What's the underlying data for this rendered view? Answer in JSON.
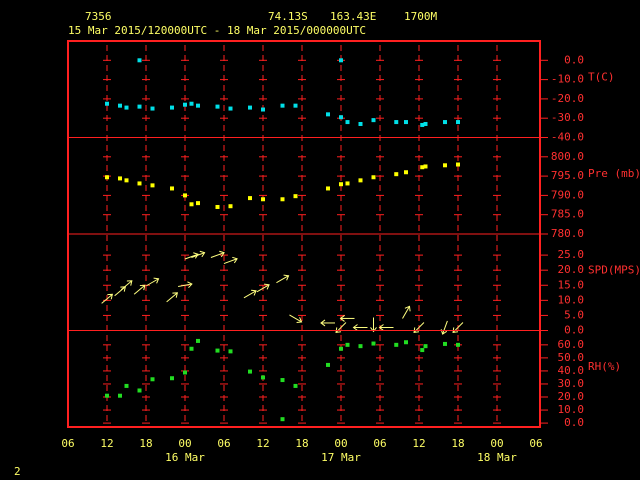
{
  "header": {
    "station": "7356",
    "latitude": "74.13S",
    "longitude": "163.43E",
    "elevation": "1700M",
    "period": "15 Mar 2015/120000UTC - 18 Mar 2015/000000UTC"
  },
  "footer": {
    "page": "2"
  },
  "chart_data": [
    {
      "type": "scatter",
      "axis_label": "T(C)",
      "color": "#00e0e8",
      "x": [
        6,
        8,
        9,
        11,
        13,
        16,
        18,
        19,
        20,
        23,
        25,
        28,
        30,
        33,
        35,
        40,
        42,
        43,
        45,
        47,
        50.5,
        52,
        54.5,
        55,
        58,
        60,
        11,
        42
      ],
      "values": [
        -22.5,
        -23.5,
        -24.5,
        -24,
        -25,
        -24.5,
        -23,
        -22.5,
        -23.5,
        -24,
        -25,
        -24.5,
        -25.5,
        -23.5,
        -23.5,
        -28,
        -29.5,
        -32,
        -33,
        -31,
        -32,
        -32,
        -33.5,
        -33,
        -32,
        -32,
        0,
        0
      ],
      "xlim": [
        0,
        72
      ],
      "ylim": [
        -40,
        10
      ],
      "yticks": [
        {
          "value": 0,
          "label": "0.0"
        },
        {
          "value": -10,
          "label": "-10.0"
        },
        {
          "value": -20,
          "label": "-20.0"
        },
        {
          "value": -30,
          "label": "-30.0"
        },
        {
          "value": -40,
          "label": "-40.0"
        }
      ]
    },
    {
      "type": "scatter",
      "axis_label": "Pre (mb)",
      "color": "#ffff00",
      "x": [
        6,
        8,
        9,
        11,
        13,
        16,
        18,
        19,
        20,
        23,
        25,
        28,
        30,
        33,
        35,
        40,
        42,
        43,
        45,
        47,
        50.5,
        52,
        54.5,
        55,
        58,
        60
      ],
      "values": [
        794.7,
        794.4,
        793.9,
        793.1,
        792.6,
        791.8,
        790,
        787.7,
        788,
        787,
        787.2,
        789.3,
        789,
        789,
        789.8,
        791.8,
        792.9,
        793.1,
        793.9,
        794.7,
        795.5,
        796,
        797.3,
        797.5,
        797.8,
        798
      ],
      "xlim": [
        0,
        72
      ],
      "ylim": [
        780,
        805
      ],
      "yticks": [
        {
          "value": 800,
          "label": "800.0"
        },
        {
          "value": 795,
          "label": "795.0"
        },
        {
          "value": 790,
          "label": "790.0"
        },
        {
          "value": 785,
          "label": "785.0"
        },
        {
          "value": 780,
          "label": "780.0"
        }
      ]
    },
    {
      "type": "quiver",
      "axis_label": "SPD(MPS)",
      "color": "#ffff80",
      "x": [
        6,
        8,
        9,
        11,
        13,
        16,
        18,
        19,
        20,
        23,
        25,
        28,
        30,
        33,
        35,
        40,
        42,
        43,
        45,
        47,
        49,
        52,
        54,
        58,
        60
      ],
      "values": [
        10.5,
        13,
        15,
        13.5,
        16,
        11,
        15,
        24.5,
        25,
        25,
        23,
        12,
        14,
        17,
        4,
        2.5,
        1,
        4,
        1,
        2,
        1,
        6,
        1,
        1,
        1
      ],
      "direction": [
        50,
        50,
        50,
        50,
        60,
        50,
        80,
        70,
        70,
        70,
        70,
        60,
        60,
        60,
        120,
        270,
        225,
        270,
        270,
        180,
        270,
        30,
        225,
        200,
        225
      ],
      "xlim": [
        0,
        72
      ],
      "ylim": [
        0,
        32
      ],
      "yticks": [
        {
          "value": 25,
          "label": "25.0"
        },
        {
          "value": 20,
          "label": "20.0"
        },
        {
          "value": 15,
          "label": "15.0"
        },
        {
          "value": 10,
          "label": "10.0"
        },
        {
          "value": 5,
          "label": "5.0"
        },
        {
          "value": 0,
          "label": "0.0"
        }
      ]
    },
    {
      "type": "scatter",
      "axis_label": "RH(%)",
      "color": "#22dd22",
      "x": [
        6,
        8,
        9,
        11,
        13,
        16,
        18,
        19,
        20,
        23,
        25,
        28,
        30,
        33,
        35,
        33,
        40,
        42,
        43,
        45,
        47,
        50.5,
        52,
        54.5,
        55,
        58,
        60
      ],
      "values": [
        21,
        21,
        28.5,
        25,
        33.6,
        34.4,
        38.8,
        57,
        63,
        55.6,
        55,
        39.5,
        35,
        33,
        28.5,
        3,
        44.6,
        57,
        60,
        59,
        61,
        60,
        62,
        56,
        59,
        60.7,
        60
      ],
      "xlim": [
        0,
        72
      ],
      "ylim": [
        -3,
        71
      ],
      "yticks": [
        {
          "value": 60,
          "label": "60.0"
        },
        {
          "value": 50,
          "label": "50.0"
        },
        {
          "value": 40,
          "label": "40.0"
        },
        {
          "value": 30,
          "label": "30.0"
        },
        {
          "value": 20,
          "label": "20.0"
        },
        {
          "value": 10,
          "label": "10.0"
        },
        {
          "value": 0,
          "label": "0.0"
        }
      ],
      "xticks": [
        {
          "value": 0,
          "label": "06"
        },
        {
          "value": 6,
          "label": "12"
        },
        {
          "value": 12,
          "label": "18"
        },
        {
          "value": 18,
          "label": "00"
        },
        {
          "value": 24,
          "label": "06"
        },
        {
          "value": 30,
          "label": "12"
        },
        {
          "value": 36,
          "label": "18"
        },
        {
          "value": 42,
          "label": "00"
        },
        {
          "value": 48,
          "label": "06"
        },
        {
          "value": 54,
          "label": "12"
        },
        {
          "value": 60,
          "label": "18"
        },
        {
          "value": 66,
          "label": "00"
        },
        {
          "value": 72,
          "label": "06"
        }
      ],
      "date_labels": [
        {
          "value": 18,
          "label": "16 Mar"
        },
        {
          "value": 42,
          "label": "17 Mar"
        },
        {
          "value": 66,
          "label": "18 Mar"
        }
      ]
    }
  ]
}
